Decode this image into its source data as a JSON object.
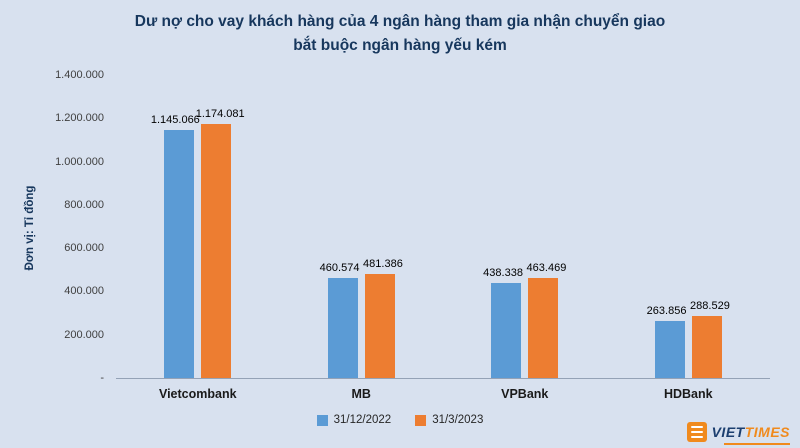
{
  "title": {
    "line1": "Dư nợ cho vay khách hàng của 4 ngân hàng tham gia nhận chuyển giao",
    "line2": "bắt buộc ngân hàng yếu kém"
  },
  "logo": {
    "primary": "VIET",
    "secondary": "TIMES"
  },
  "chart_data": {
    "type": "bar",
    "title": "Dư nợ cho vay khách hàng của 4 ngân hàng tham gia nhận chuyển giao bắt buộc ngân hàng yếu kém",
    "ylabel": "Đơn vị: Tỉ đồng",
    "xlabel": "",
    "categories": [
      "Vietcombank",
      "MB",
      "VPBank",
      "HDBank"
    ],
    "series": [
      {
        "name": "31/12/2022",
        "color": "#5b9bd5",
        "values": [
          1145066,
          460574,
          438338,
          263856
        ],
        "labels": [
          "1.145.066",
          "460.574",
          "438.338",
          "263.856"
        ]
      },
      {
        "name": "31/3/2023",
        "color": "#ed7d31",
        "values": [
          1174081,
          481386,
          463469,
          288529
        ],
        "labels": [
          "1.174.081",
          "481.386",
          "463.469",
          "288.529"
        ]
      }
    ],
    "ylim": [
      0,
      1400000
    ],
    "y_ticks": [
      "1.400.000",
      "1.200.000",
      "1.000.000",
      "800.000",
      "600.000",
      "400.000",
      "200.000",
      "-"
    ],
    "grid": "off",
    "legend_position": "bottom"
  }
}
